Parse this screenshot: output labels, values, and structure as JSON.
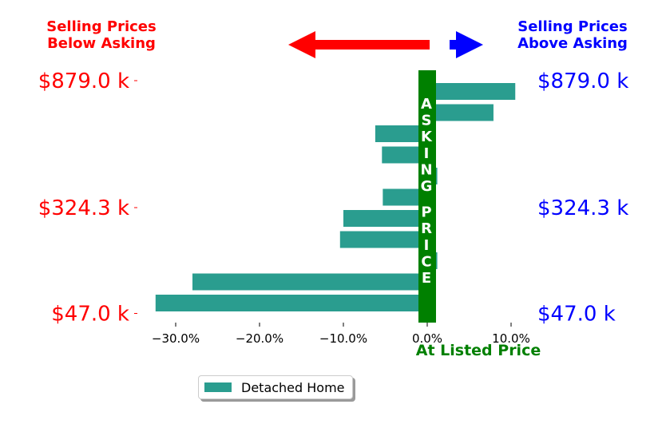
{
  "chart_data": {
    "type": "bar",
    "orientation": "horizontal",
    "header_left": [
      "Selling Prices",
      "Below Asking"
    ],
    "header_right": [
      "Selling Prices",
      "Above Asking"
    ],
    "center_bar_label": "ASKING PRICE",
    "xlabel": "At Listed Price",
    "x_ticks": [
      {
        "value": -30,
        "label": "−30.0%"
      },
      {
        "value": -20,
        "label": "−20.0%"
      },
      {
        "value": -10,
        "label": "−10.0%"
      },
      {
        "value": 0,
        "label": "0.0%"
      },
      {
        "value": 10,
        "label": "10.0%"
      }
    ],
    "xlim": [
      -34,
      12
    ],
    "y_tick_labels_left": [
      "$879.0 k",
      "$324.3 k",
      "$47.0 k"
    ],
    "y_tick_labels_right": [
      "$879.0 k",
      "$324.3 k",
      "$47.0 k"
    ],
    "y_tick_rows": [
      0,
      6,
      11
    ],
    "legend": {
      "placement": "bottom-center"
    },
    "series": [
      {
        "name": "Detached Home",
        "values": [
          10.5,
          7.9,
          -6.2,
          -5.4,
          1.2,
          -5.3,
          -10.0,
          -10.4,
          1.2,
          -28.0,
          -32.4,
          0
        ]
      }
    ],
    "colors": {
      "bar": "#2a9d8f",
      "asking_bar": "#008000",
      "left_text": "#ff0000",
      "right_text": "#0000ff",
      "left_arrow": "#ff0000",
      "right_arrow": "#0000ff",
      "xlabel": "#008000",
      "center_text": "#ffffff"
    }
  }
}
